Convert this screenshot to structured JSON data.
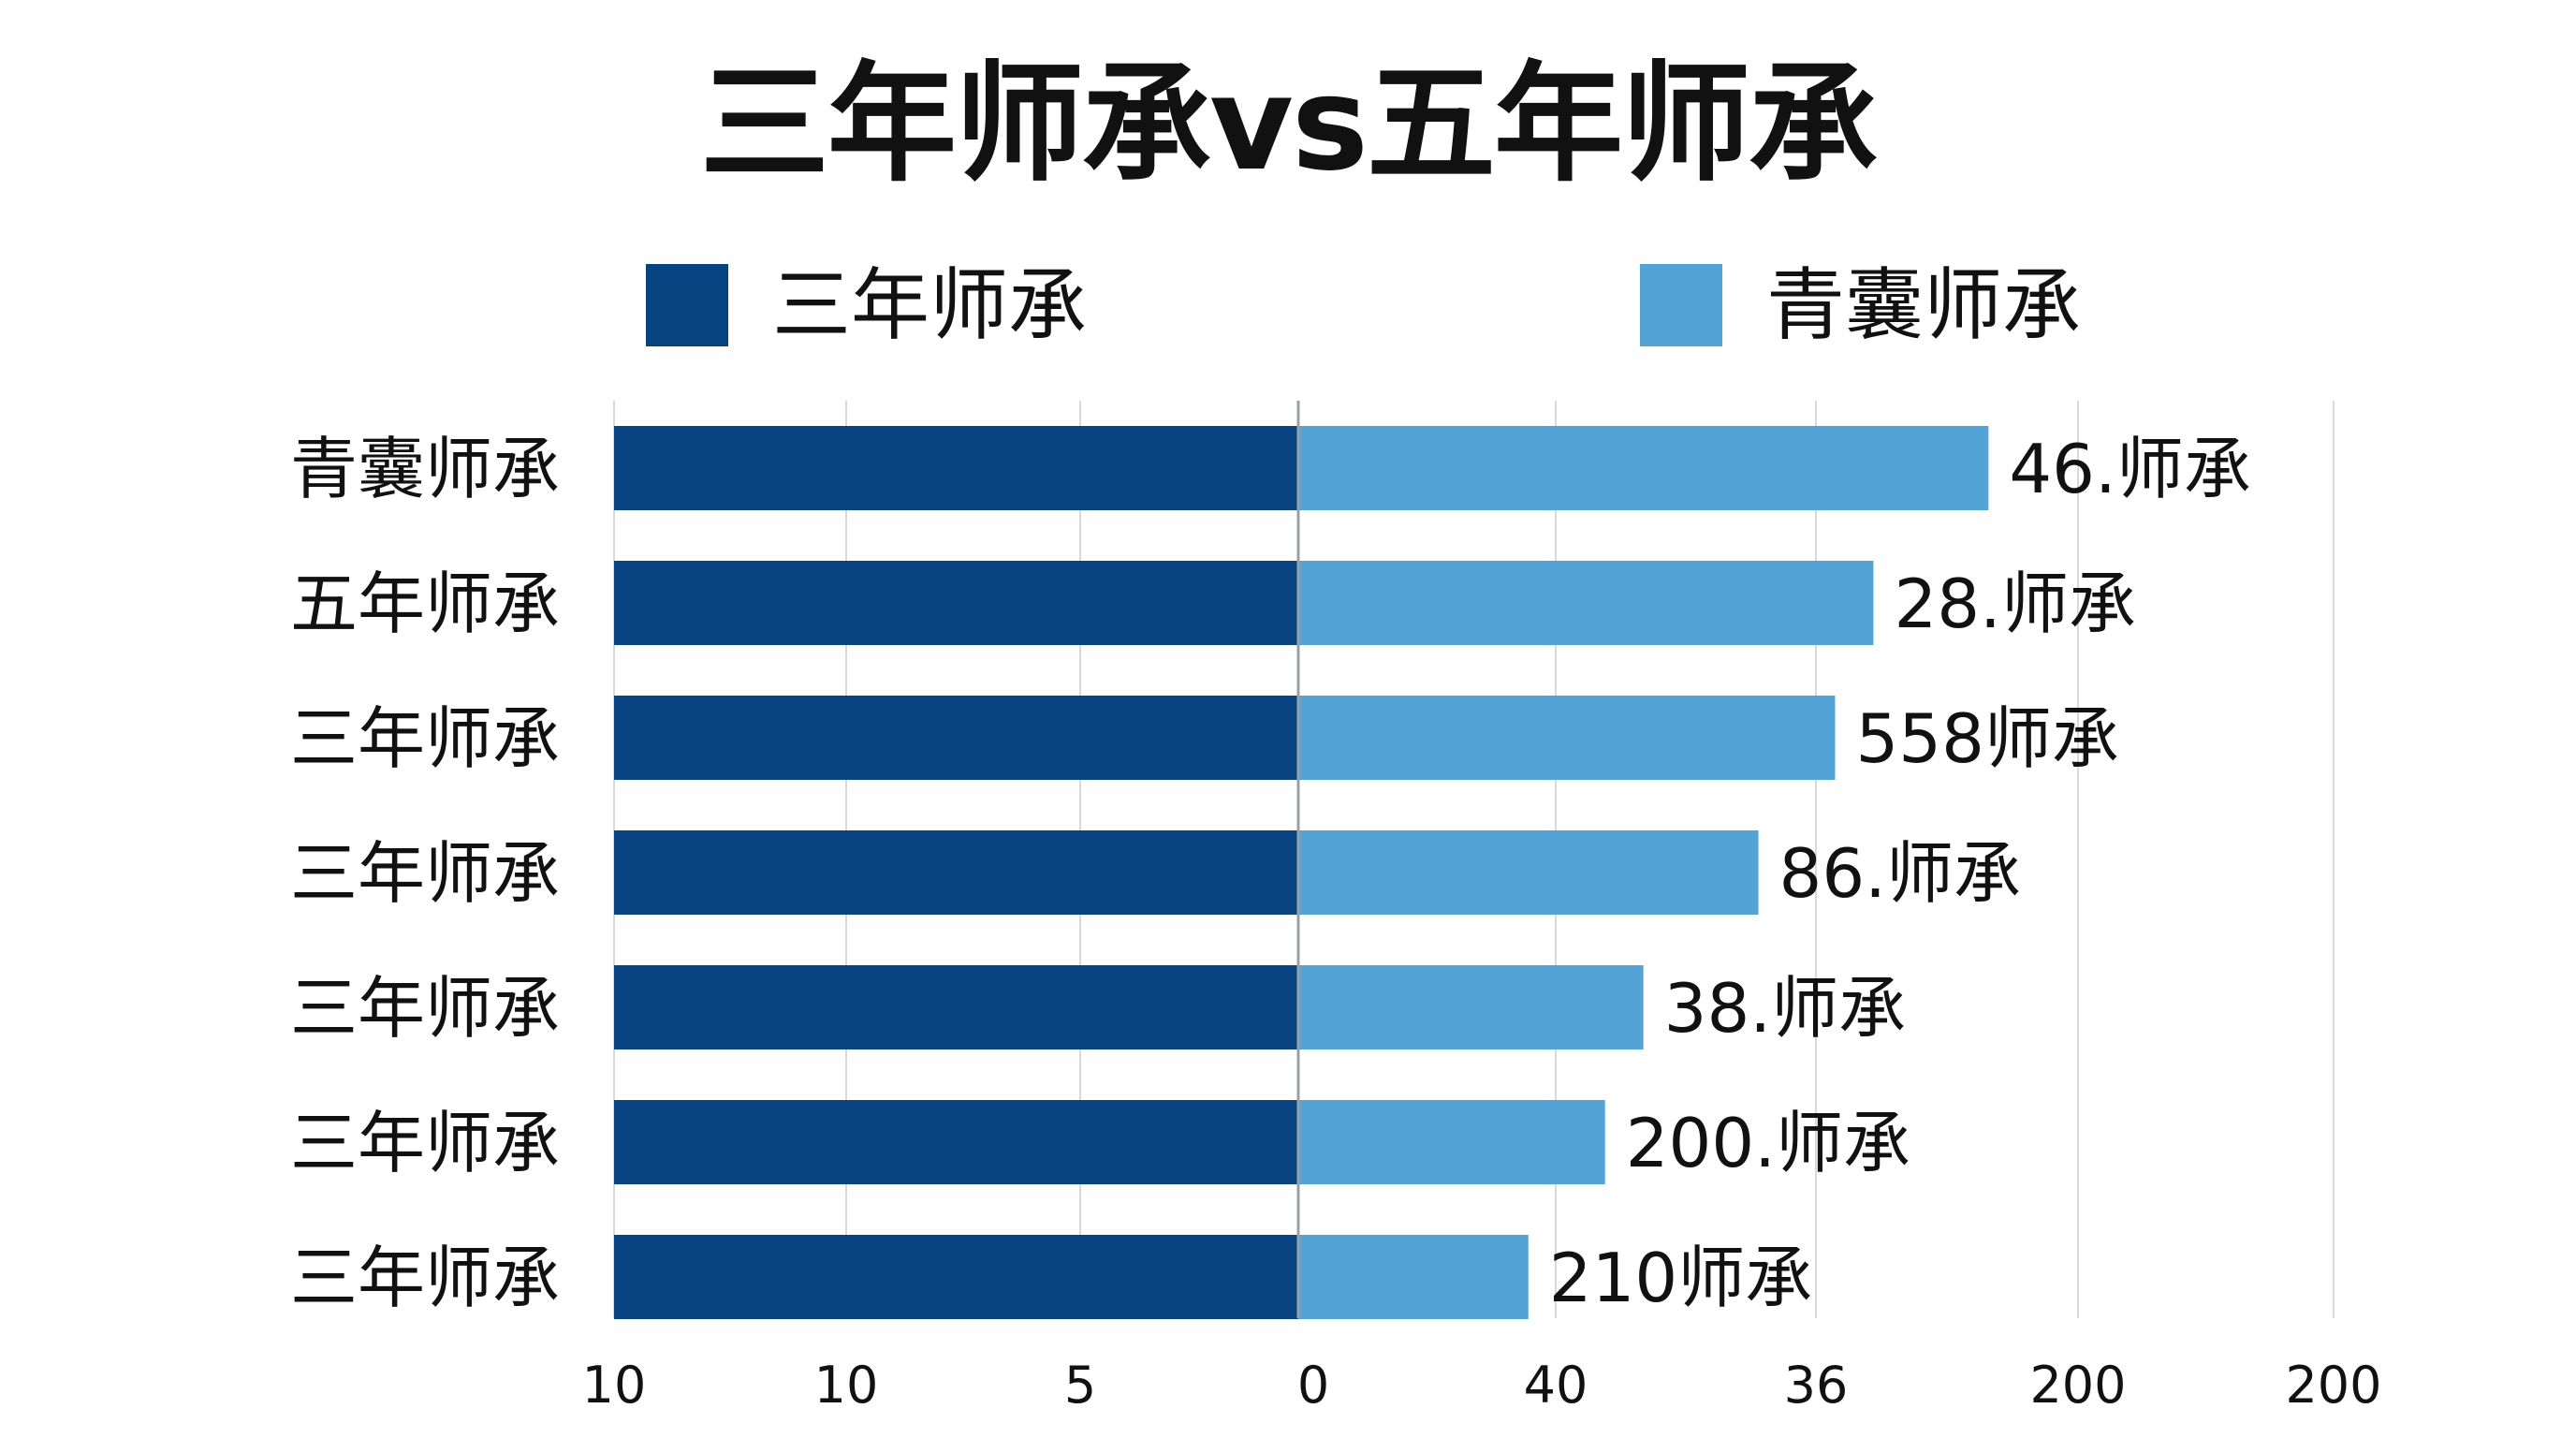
{
  "chart_data": {
    "type": "bar",
    "orientation": "horizontal-diverging",
    "title": "三年师承vs五年师承",
    "legend": [
      {
        "name": "三年师承",
        "color": "#064380"
      },
      {
        "name": "青囊师承",
        "color": "#54a3d7"
      }
    ],
    "categories": [
      "青囊师承",
      "五年师承",
      "三年师承",
      "三年师承",
      "三年师承",
      "三年师承",
      "三年师承"
    ],
    "series": [
      {
        "name": "三年师承",
        "color": "#064380",
        "values": [
          10,
          10,
          10,
          10,
          10,
          10,
          10
        ]
      },
      {
        "name": "青囊师承",
        "color": "#54a3d7",
        "values": [
          180,
          150,
          140,
          120,
          90,
          80,
          60
        ]
      }
    ],
    "data_labels": [
      "46.师承",
      "28.师承",
      "558师承",
      "86.师承",
      "38.师承",
      "200.师承",
      "210师承"
    ],
    "x_ticks_left": [
      "10",
      "10",
      "5",
      "0"
    ],
    "x_ticks_right": [
      "40",
      "36",
      "200",
      "200"
    ],
    "left_xlim": [
      10,
      0
    ],
    "right_xlim": [
      0,
      270
    ],
    "grid": "vertical",
    "legend_position": "top"
  }
}
